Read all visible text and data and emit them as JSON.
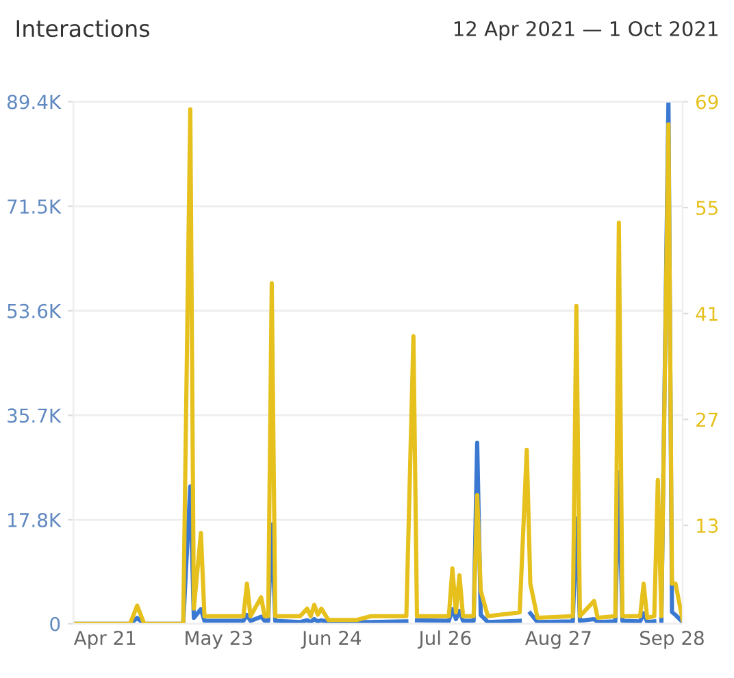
{
  "chart_data": {
    "type": "line",
    "title": "Interactions",
    "subtitle": "12 Apr 2021 — 1 Oct 2021",
    "x": [
      "2021-04-12",
      "2021-04-28",
      "2021-04-30",
      "2021-05-02",
      "2021-05-13",
      "2021-05-15",
      "2021-05-16",
      "2021-05-18",
      "2021-05-19",
      "2021-05-30",
      "2021-05-31",
      "2021-06-01",
      "2021-06-04",
      "2021-06-05",
      "2021-06-06",
      "2021-06-07",
      "2021-06-08",
      "2021-06-15",
      "2021-06-17",
      "2021-06-18",
      "2021-06-19",
      "2021-06-20",
      "2021-06-21",
      "2021-06-23",
      "2021-07-01",
      "2021-07-05",
      "2021-07-15",
      "2021-07-17",
      "2021-07-18",
      "2021-07-27",
      "2021-07-28",
      "2021-07-29",
      "2021-07-30",
      "2021-07-31",
      "2021-08-03",
      "2021-08-04",
      "2021-08-05",
      "2021-08-07",
      "2021-08-16",
      "2021-08-18",
      "2021-08-19",
      "2021-08-21",
      "2021-08-31",
      "2021-09-01",
      "2021-09-02",
      "2021-09-06",
      "2021-09-07",
      "2021-09-12",
      "2021-09-13",
      "2021-09-14",
      "2021-09-19",
      "2021-09-20",
      "2021-09-21",
      "2021-09-23",
      "2021-09-24",
      "2021-09-25",
      "2021-09-27",
      "2021-09-28",
      "2021-09-29",
      "2021-10-01"
    ],
    "series": [
      {
        "color": "#3b78d1",
        "values": [
          0,
          0,
          1000,
          0,
          0,
          23500,
          1000,
          2500,
          500,
          500,
          1500,
          500,
          1200,
          500,
          500,
          17000,
          500,
          300,
          600,
          300,
          800,
          400,
          600,
          300,
          300,
          300,
          400,
          null,
          600,
          500,
          2500,
          800,
          2200,
          500,
          500,
          31000,
          1500,
          300,
          500,
          null,
          1800,
          300,
          400,
          18000,
          500,
          800,
          300,
          400,
          25900,
          500,
          400,
          1800,
          300,
          400,
          null,
          500,
          89400,
          2000,
          1500,
          300
        ]
      },
      {
        "color": "#e6c01c",
        "axis": "y2",
        "values": [
          0,
          0,
          2.4,
          0,
          0,
          68,
          2,
          12,
          1,
          1,
          5.3,
          1,
          3.5,
          1,
          1,
          45,
          1,
          1,
          2,
          1,
          2.5,
          1.2,
          2,
          0.5,
          0.5,
          1,
          1,
          38,
          1,
          1,
          7.3,
          1.5,
          6.4,
          1,
          1,
          17,
          4.4,
          1,
          1.5,
          23,
          5.3,
          0.8,
          1,
          42,
          1,
          3,
          0.8,
          1,
          53,
          1,
          1,
          5.3,
          0.8,
          1,
          19,
          1,
          66,
          5.3,
          5.3,
          0.5
        ]
      }
    ],
    "xlim": [
      "2021-04-12",
      "2021-10-01"
    ],
    "xticks": [
      {
        "value": "2021-04-21",
        "label": "Apr 21"
      },
      {
        "value": "2021-05-23",
        "label": "May 23"
      },
      {
        "value": "2021-06-24",
        "label": "Jun 24"
      },
      {
        "value": "2021-07-26",
        "label": "Jul 26"
      },
      {
        "value": "2021-08-27",
        "label": "Aug 27"
      },
      {
        "value": "2021-09-28",
        "label": "Sep 28"
      }
    ],
    "ylim": [
      0,
      89400
    ],
    "yticks": [
      0,
      {
        "value": 17800,
        "label": "17.8K"
      },
      {
        "value": 35700,
        "label": "35.7K"
      },
      {
        "value": 53600,
        "label": "53.6K"
      },
      {
        "value": 71500,
        "label": "71.5K"
      },
      {
        "value": 89400,
        "label": "89.4K"
      }
    ],
    "y2lim": [
      0,
      69
    ],
    "y2ticks": [
      13,
      27,
      41,
      55,
      69
    ],
    "grid": "y",
    "marker": "none",
    "line_style": "solid"
  }
}
